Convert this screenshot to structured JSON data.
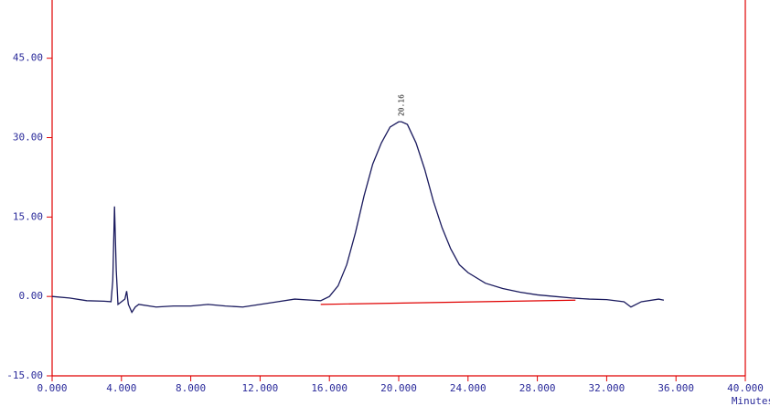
{
  "chart_data": {
    "type": "line",
    "series": [
      {
        "color": "#1a1a5e",
        "x": [
          0,
          1,
          2,
          3,
          3.4,
          3.5,
          3.6,
          3.7,
          3.8,
          4.0,
          4.2,
          4.3,
          4.4,
          4.6,
          4.8,
          5,
          6,
          7,
          8,
          9,
          10,
          11,
          12,
          13,
          14,
          15,
          15.5,
          16,
          16.5,
          17,
          17.5,
          18,
          18.5,
          19,
          19.5,
          20,
          20.16,
          20.5,
          21,
          21.5,
          22,
          22.5,
          23,
          23.5,
          24,
          25,
          26,
          27,
          28,
          29,
          30,
          31,
          32,
          33,
          33.4,
          34,
          35,
          35.3
        ],
        "values": [
          0,
          -0.3,
          -0.8,
          -0.9,
          -1,
          3,
          17,
          5,
          -1.5,
          -1,
          -0.5,
          1,
          -1.5,
          -3,
          -2,
          -1.5,
          -2,
          -1.8,
          -1.8,
          -1.5,
          -1.8,
          -2,
          -1.5,
          -1,
          -0.5,
          -0.7,
          -0.8,
          0,
          2,
          6,
          12,
          19,
          25,
          29,
          32,
          33,
          33,
          32.5,
          29,
          24,
          18,
          13,
          9,
          6,
          4.5,
          2.5,
          1.5,
          0.8,
          0.3,
          0,
          -0.3,
          -0.5,
          -0.6,
          -1,
          -2,
          -1,
          -0.5,
          -0.7
        ]
      }
    ],
    "baseline": {
      "color": "#e00000",
      "x": [
        15.5,
        30.2
      ],
      "values": [
        -1.5,
        -0.7
      ]
    },
    "annotation": {
      "text": "20.16",
      "x": 20.16,
      "y": 33
    },
    "x_label": "Minutes",
    "axis_color": "#e00000",
    "xlim": [
      0,
      40
    ],
    "ylim": [
      -15,
      56
    ],
    "xticks": [
      {
        "value": 0,
        "label": "0.000"
      },
      {
        "value": 4,
        "label": "4.000"
      },
      {
        "value": 8,
        "label": "8.000"
      },
      {
        "value": 12,
        "label": "12.000"
      },
      {
        "value": 16,
        "label": "16.000"
      },
      {
        "value": 20,
        "label": "20.000"
      },
      {
        "value": 24,
        "label": "24.000"
      },
      {
        "value": 28,
        "label": "28.000"
      },
      {
        "value": 32,
        "label": "32.000"
      },
      {
        "value": 36,
        "label": "36.000"
      },
      {
        "value": 40,
        "label": "40.000"
      }
    ],
    "yticks": [
      {
        "value": -15,
        "label": "-15.00"
      },
      {
        "value": 0,
        "label": "0.00"
      },
      {
        "value": 15,
        "label": "15.00"
      },
      {
        "value": 30,
        "label": "30.00"
      },
      {
        "value": 45,
        "label": "45.00"
      }
    ]
  }
}
